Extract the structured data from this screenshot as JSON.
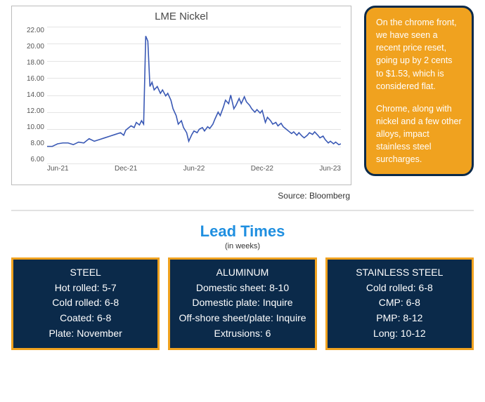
{
  "chart": {
    "type": "line",
    "title": "LME Nickel",
    "line_color": "#3a59b5",
    "line_width": 1.6,
    "background_color": "#ffffff",
    "grid_color": "#e4e4e4",
    "border_color": "#bcbcbc",
    "title_fontsize": 15,
    "label_fontsize": 10,
    "text_color": "#555555",
    "ylim": [
      6.0,
      22.0
    ],
    "ytick_step": 2.0,
    "yticks": [
      "22.00",
      "20.00",
      "18.00",
      "16.00",
      "14.00",
      "12.00",
      "10.00",
      "8.00",
      "6.00"
    ],
    "xticks": [
      "Jun-21",
      "Dec-21",
      "Jun-22",
      "Dec-22",
      "Jun-23"
    ],
    "x_range": [
      0,
      28
    ],
    "series": [
      [
        0,
        8.0
      ],
      [
        0.5,
        8.0
      ],
      [
        1,
        8.3
      ],
      [
        1.5,
        8.4
      ],
      [
        2,
        8.4
      ],
      [
        2.5,
        8.2
      ],
      [
        3,
        8.5
      ],
      [
        3.5,
        8.4
      ],
      [
        4,
        8.9
      ],
      [
        4.5,
        8.6
      ],
      [
        5,
        8.8
      ],
      [
        5.5,
        9.0
      ],
      [
        6,
        9.2
      ],
      [
        6.5,
        9.4
      ],
      [
        7,
        9.6
      ],
      [
        7.3,
        9.3
      ],
      [
        7.5,
        9.9
      ],
      [
        8,
        10.4
      ],
      [
        8.3,
        10.2
      ],
      [
        8.5,
        10.8
      ],
      [
        8.8,
        10.5
      ],
      [
        9,
        11.0
      ],
      [
        9.2,
        10.6
      ],
      [
        9.4,
        20.9
      ],
      [
        9.6,
        20.3
      ],
      [
        9.8,
        15.0
      ],
      [
        10,
        15.5
      ],
      [
        10.2,
        14.6
      ],
      [
        10.5,
        15.0
      ],
      [
        10.8,
        14.2
      ],
      [
        11,
        14.6
      ],
      [
        11.3,
        13.9
      ],
      [
        11.5,
        14.2
      ],
      [
        11.8,
        13.4
      ],
      [
        12,
        12.4
      ],
      [
        12.3,
        11.6
      ],
      [
        12.5,
        10.6
      ],
      [
        12.8,
        11.0
      ],
      [
        13,
        10.2
      ],
      [
        13.3,
        9.6
      ],
      [
        13.5,
        8.6
      ],
      [
        13.8,
        9.4
      ],
      [
        14,
        9.8
      ],
      [
        14.3,
        9.6
      ],
      [
        14.5,
        10.0
      ],
      [
        14.8,
        10.2
      ],
      [
        15,
        9.8
      ],
      [
        15.3,
        10.3
      ],
      [
        15.5,
        10.1
      ],
      [
        15.8,
        10.6
      ],
      [
        16,
        11.2
      ],
      [
        16.3,
        12.0
      ],
      [
        16.5,
        11.6
      ],
      [
        16.8,
        12.6
      ],
      [
        17,
        13.4
      ],
      [
        17.3,
        13.0
      ],
      [
        17.5,
        14.0
      ],
      [
        17.8,
        12.4
      ],
      [
        18,
        12.8
      ],
      [
        18.3,
        13.6
      ],
      [
        18.5,
        13.0
      ],
      [
        18.8,
        13.8
      ],
      [
        19,
        13.2
      ],
      [
        19.3,
        12.8
      ],
      [
        19.5,
        12.4
      ],
      [
        19.8,
        12.0
      ],
      [
        20,
        12.3
      ],
      [
        20.3,
        11.9
      ],
      [
        20.5,
        12.2
      ],
      [
        20.8,
        10.8
      ],
      [
        21,
        11.4
      ],
      [
        21.3,
        11.0
      ],
      [
        21.5,
        10.6
      ],
      [
        21.8,
        10.8
      ],
      [
        22,
        10.4
      ],
      [
        22.3,
        10.7
      ],
      [
        22.5,
        10.3
      ],
      [
        22.8,
        10.0
      ],
      [
        23,
        9.8
      ],
      [
        23.3,
        9.5
      ],
      [
        23.5,
        9.7
      ],
      [
        23.8,
        9.3
      ],
      [
        24,
        9.6
      ],
      [
        24.3,
        9.2
      ],
      [
        24.5,
        9.0
      ],
      [
        24.8,
        9.3
      ],
      [
        25,
        9.6
      ],
      [
        25.3,
        9.4
      ],
      [
        25.5,
        9.7
      ],
      [
        25.8,
        9.3
      ],
      [
        26,
        9.0
      ],
      [
        26.3,
        9.2
      ],
      [
        26.5,
        8.8
      ],
      [
        26.8,
        8.4
      ],
      [
        27,
        8.6
      ],
      [
        27.3,
        8.3
      ],
      [
        27.5,
        8.5
      ],
      [
        27.8,
        8.2
      ],
      [
        28,
        8.3
      ]
    ],
    "source": "Source: Bloomberg"
  },
  "callout": {
    "background_color": "#f0a21f",
    "border_color": "#0b2a4a",
    "text_color": "#ffffff",
    "border_radius": 16,
    "fontsize": 12.5,
    "para1": "On the chrome front, we have seen a recent price reset, going up by 2 cents to $1.53, which is considered flat.",
    "para2": "Chrome, along with nickel and a few other alloys, impact stainless steel surcharges."
  },
  "lead_times": {
    "title": "Lead Times",
    "title_color": "#1f8fe0",
    "subtitle": "(in weeks)",
    "card_bg": "#0b2a4a",
    "card_border": "#f0a21f",
    "card_text": "#ffffff",
    "cards": [
      {
        "name": "STEEL",
        "lines": [
          "Hot rolled: 5-7",
          "Cold rolled: 6-8",
          "Coated: 6-8",
          "Plate: November"
        ]
      },
      {
        "name": "ALUMINUM",
        "lines": [
          "Domestic sheet: 8-10",
          "Domestic plate: Inquire",
          "Off-shore sheet/plate: Inquire",
          "Extrusions: 6"
        ]
      },
      {
        "name": "STAINLESS STEEL",
        "lines": [
          "Cold rolled: 6-8",
          "CMP: 6-8",
          "PMP: 8-12",
          "Long: 10-12"
        ]
      }
    ]
  }
}
